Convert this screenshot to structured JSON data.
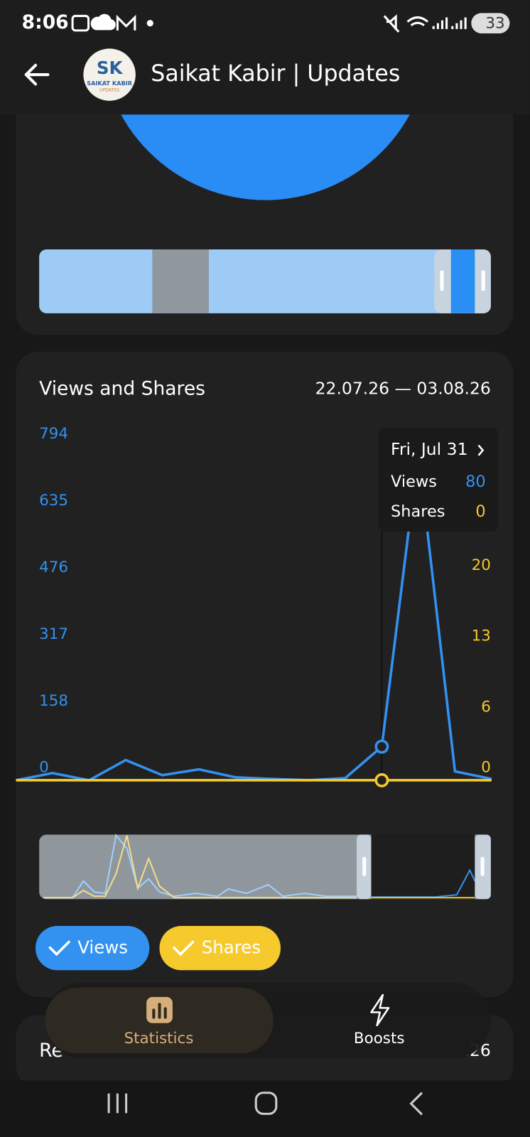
{
  "status_bar": {
    "time": "8:06",
    "battery": "33"
  },
  "header": {
    "title": "Saikat Kabir | Updates",
    "avatar_initials": "SK",
    "avatar_name": "SAIKAT KABIR",
    "avatar_sub": "UPDATES"
  },
  "chart_data": {
    "type": "line",
    "title": "Views and Shares",
    "date_range": "22.07.26 — 03.08.26",
    "categories": [
      null,
      null,
      null,
      null,
      null,
      null,
      null,
      null,
      null,
      null,
      null,
      null,
      null,
      null
    ],
    "series": [
      {
        "name": "Views",
        "color": "#3391f0",
        "values": [
          0,
          17,
          0,
          48,
          12,
          26,
          7,
          3,
          0,
          5,
          80,
          780,
          21,
          3
        ]
      },
      {
        "name": "Shares",
        "color": "#f6c92d",
        "axis": "y2",
        "values": [
          0,
          0,
          0,
          0,
          0,
          0,
          0,
          0,
          0,
          0,
          0,
          0,
          0,
          0
        ]
      }
    ],
    "ylim": [
      0,
      794
    ],
    "yticks": [
      0,
      158,
      317,
      476,
      635,
      794
    ],
    "y2lim": [
      0,
      33
    ],
    "y2ticks": [
      0,
      6,
      13,
      20
    ],
    "tooltip": {
      "date": "Fri, Jul 31",
      "index": 10
    }
  },
  "next_section": {
    "title_fragment": "Re",
    "date_fragment": ".26"
  },
  "bottom_nav": {
    "items": [
      "Statistics",
      "Boosts"
    ]
  }
}
